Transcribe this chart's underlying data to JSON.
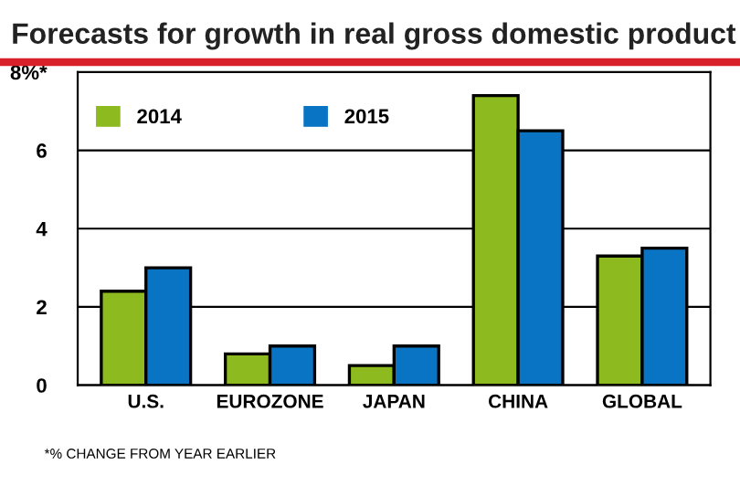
{
  "chart_data": {
    "type": "bar",
    "title": "Forecasts for growth in real gross domestic product",
    "categories": [
      "U.S.",
      "EUROZONE",
      "JAPAN",
      "CHINA",
      "GLOBAL"
    ],
    "series": [
      {
        "name": "2014",
        "color": "#8dbb1f",
        "values": [
          2.4,
          0.8,
          0.5,
          7.4,
          3.3
        ]
      },
      {
        "name": "2015",
        "color": "#0a74c4",
        "values": [
          3.0,
          1.0,
          1.0,
          6.5,
          3.5
        ]
      }
    ],
    "ylim": [
      0,
      8
    ],
    "yticks": [
      0,
      2,
      4,
      6,
      {
        "value": 8,
        "label": "8%*"
      }
    ],
    "grid": "y",
    "legend": "top left",
    "annotations": [
      "*% CHANGE FROM YEAR EARLIER"
    ]
  }
}
